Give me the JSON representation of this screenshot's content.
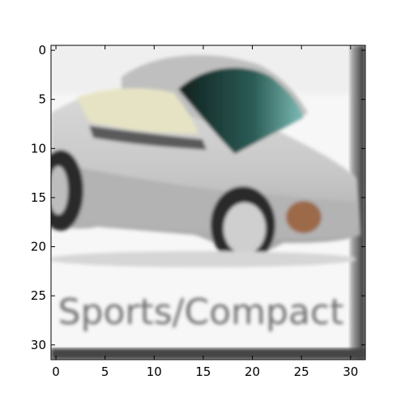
{
  "chart_data": {
    "type": "image",
    "x_ticks": [
      "0",
      "5",
      "10",
      "15",
      "20",
      "25",
      "30"
    ],
    "y_ticks": [
      "0",
      "5",
      "10",
      "15",
      "20",
      "25",
      "30"
    ],
    "x_range": [
      -0.5,
      31.5
    ],
    "y_range": [
      -0.5,
      31.5
    ],
    "grid": false
  },
  "image": {
    "subject": "silver sports car",
    "caption_text": "Sports/Compact"
  }
}
